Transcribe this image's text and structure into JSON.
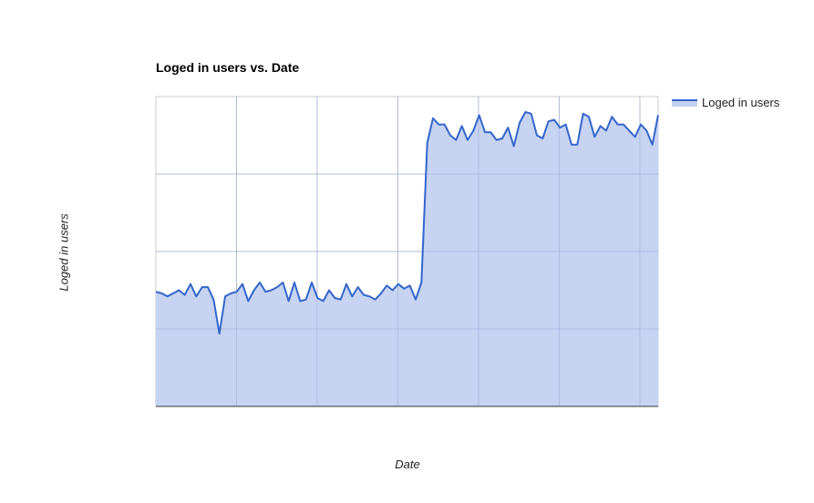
{
  "chart_data": {
    "type": "area",
    "title": "Loged in users vs. Date",
    "xlabel": "Date",
    "ylabel": "Loged in users",
    "ylim": [
      0,
      100
    ],
    "grid": true,
    "legend_position": "right",
    "series": [
      {
        "name": "Loged in users",
        "color": "#3366cc",
        "fill": "#c3d1f0",
        "values": [
          37,
          36.5,
          35.5,
          36.5,
          37.5,
          36,
          39.5,
          35.5,
          38.5,
          38.5,
          34.5,
          23.5,
          35.5,
          36.5,
          37,
          39.5,
          34,
          37.5,
          40,
          37,
          37.5,
          38.5,
          40,
          34,
          40,
          34,
          34.5,
          40,
          35,
          34,
          37.5,
          35,
          34.5,
          39.5,
          35.5,
          38.5,
          36,
          35.5,
          34.5,
          36.5,
          39,
          37.5,
          39.5,
          38,
          39,
          34.5,
          40,
          85,
          93,
          91,
          91,
          87.5,
          86,
          90.5,
          86,
          89,
          94,
          88.5,
          88.5,
          86,
          86.5,
          90,
          84,
          91.5,
          95,
          94.5,
          87.5,
          86.5,
          92,
          92.5,
          90,
          91,
          84.5,
          84.5,
          94.5,
          93.5,
          87,
          90.5,
          89,
          93.5,
          91,
          91,
          89,
          87,
          91,
          89,
          84.5,
          94
        ]
      }
    ]
  }
}
